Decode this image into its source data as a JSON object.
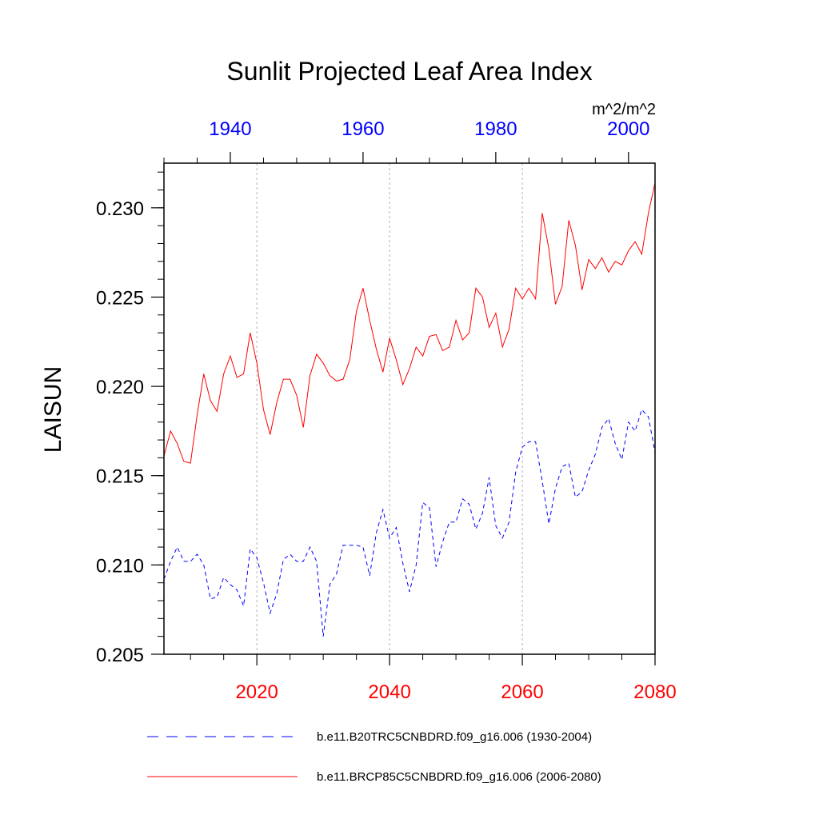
{
  "chart_data": {
    "type": "line",
    "title": "Sunlit Projected Leaf Area Index",
    "ylabel": "LAISUN",
    "units": "m^2/m^2",
    "ylim": [
      0.205,
      0.2325
    ],
    "y_ticks": [
      "0.205",
      "0.210",
      "0.215",
      "0.220",
      "0.225",
      "0.230"
    ],
    "x_bottom": {
      "range": [
        2006,
        2080
      ],
      "ticks": [
        "2020",
        "2040",
        "2060",
        "2080"
      ],
      "color": "#ff0000"
    },
    "x_top": {
      "range": [
        1930,
        2004
      ],
      "ticks": [
        "1940",
        "1960",
        "1980",
        "2000"
      ],
      "color": "#0000ff"
    },
    "series": [
      {
        "name": "b.e11.B20TRC5CNBDRD.f09_g16.006 (1930-2004)",
        "axis": "top",
        "color": "#0000ff",
        "dash": "dashed",
        "start_year": 1930,
        "values": [
          0.2092,
          0.2102,
          0.211,
          0.2102,
          0.2102,
          0.2106,
          0.21,
          0.2081,
          0.2082,
          0.2093,
          0.2089,
          0.2086,
          0.2077,
          0.2109,
          0.2104,
          0.209,
          0.2073,
          0.2084,
          0.2103,
          0.2106,
          0.2102,
          0.2102,
          0.211,
          0.2102,
          0.206,
          0.2089,
          0.2095,
          0.2111,
          0.2111,
          0.2111,
          0.211,
          0.2094,
          0.2118,
          0.2131,
          0.2115,
          0.2121,
          0.2101,
          0.2085,
          0.21,
          0.2135,
          0.2132,
          0.2099,
          0.2113,
          0.2124,
          0.2124,
          0.2137,
          0.2134,
          0.212,
          0.2129,
          0.2149,
          0.2122,
          0.2115,
          0.2124,
          0.2152,
          0.2166,
          0.2169,
          0.2169,
          0.2147,
          0.2123,
          0.2143,
          0.2155,
          0.2157,
          0.2138,
          0.2141,
          0.2153,
          0.2162,
          0.2177,
          0.2182,
          0.2168,
          0.2159,
          0.218,
          0.2175,
          0.2187,
          0.2183,
          0.2163
        ]
      },
      {
        "name": "b.e11.BRCP85C5CNBDRD.f09_g16.006 (2006-2080)",
        "axis": "bottom",
        "color": "#ff0000",
        "dash": "solid",
        "start_year": 2006,
        "values": [
          0.2161,
          0.2175,
          0.2168,
          0.2158,
          0.2157,
          0.2184,
          0.2207,
          0.2192,
          0.2186,
          0.2207,
          0.2217,
          0.2205,
          0.2207,
          0.223,
          0.2213,
          0.2187,
          0.2173,
          0.2191,
          0.2204,
          0.2204,
          0.2195,
          0.2177,
          0.2206,
          0.2218,
          0.2213,
          0.2206,
          0.2203,
          0.2204,
          0.2215,
          0.2242,
          0.2255,
          0.2237,
          0.2221,
          0.2208,
          0.2227,
          0.2215,
          0.2201,
          0.221,
          0.2222,
          0.2217,
          0.2228,
          0.2229,
          0.222,
          0.2222,
          0.2237,
          0.2226,
          0.223,
          0.2255,
          0.225,
          0.2233,
          0.2241,
          0.2222,
          0.2232,
          0.2255,
          0.2249,
          0.2255,
          0.2249,
          0.2297,
          0.2277,
          0.2246,
          0.2256,
          0.2293,
          0.2279,
          0.2254,
          0.2271,
          0.2266,
          0.2272,
          0.2264,
          0.227,
          0.2268,
          0.2276,
          0.2281,
          0.2274,
          0.2297,
          0.2314
        ]
      }
    ]
  }
}
